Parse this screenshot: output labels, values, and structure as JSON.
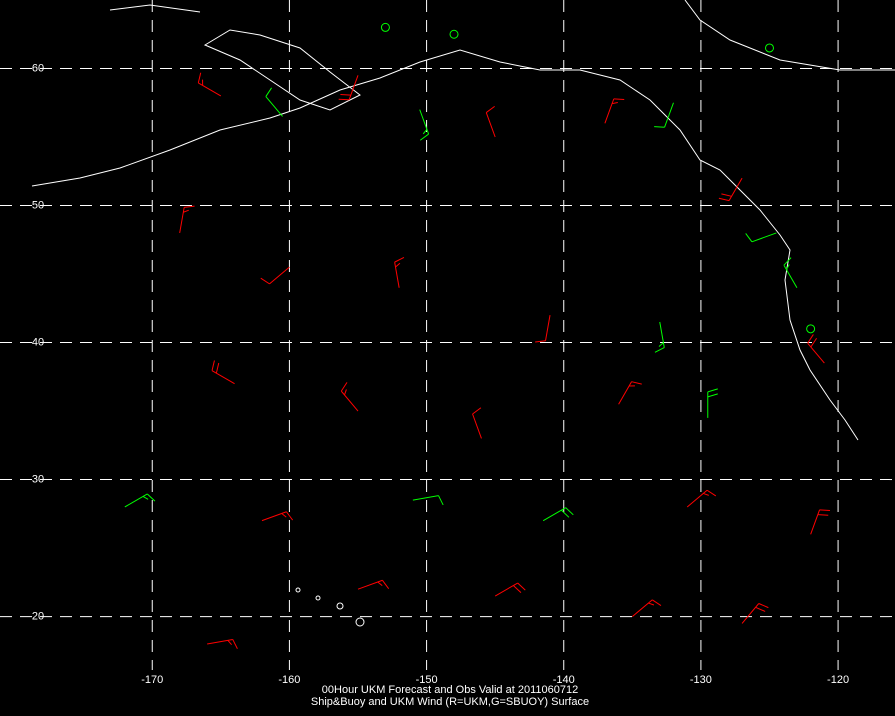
{
  "map": {
    "title": "00Hour UKM Forecast and Obs Valid at 2011060712",
    "subtitle": "Ship&Buoy and UKM Wind (R=UKM,G=SBUOY) Surface",
    "xlim": [
      -181.1,
      -115.85
    ],
    "ylim": [
      16.1,
      65.0
    ],
    "xticks": [
      -170,
      -160,
      -150,
      -140,
      -130,
      -120
    ],
    "yticks": [
      20,
      30,
      40,
      50,
      60
    ],
    "grid": true,
    "barbs": [
      {
        "lon": -165.0,
        "lat": 58.0,
        "dir": 300,
        "speed": 15,
        "color": "#ff0000"
      },
      {
        "lon": -160.5,
        "lat": 56.5,
        "dir": 320,
        "speed": 10,
        "color": "#00ff00"
      },
      {
        "lon": -155.0,
        "lat": 59.5,
        "dir": 200,
        "speed": 20,
        "color": "#ff0000"
      },
      {
        "lon": -150.5,
        "lat": 57.0,
        "dir": 160,
        "speed": 15,
        "color": "#00ff00"
      },
      {
        "lon": -148.0,
        "lat": 62.5,
        "dir": 0,
        "speed": 0,
        "color": "#00ff00"
      },
      {
        "lon": -153.0,
        "lat": 63.0,
        "dir": 0,
        "speed": 0,
        "color": "#00ff00"
      },
      {
        "lon": -125.0,
        "lat": 61.5,
        "dir": 0,
        "speed": 0,
        "color": "#00ff00"
      },
      {
        "lon": -145.0,
        "lat": 55.0,
        "dir": 340,
        "speed": 10,
        "color": "#ff0000"
      },
      {
        "lon": -137.0,
        "lat": 56.0,
        "dir": 20,
        "speed": 15,
        "color": "#ff0000"
      },
      {
        "lon": -132.0,
        "lat": 57.5,
        "dir": 200,
        "speed": 10,
        "color": "#00ff00"
      },
      {
        "lon": -127.0,
        "lat": 52.0,
        "dir": 210,
        "speed": 20,
        "color": "#ff0000"
      },
      {
        "lon": -124.5,
        "lat": 48.0,
        "dir": 250,
        "speed": 10,
        "color": "#00ff00"
      },
      {
        "lon": -123.0,
        "lat": 44.0,
        "dir": 330,
        "speed": 15,
        "color": "#00ff00"
      },
      {
        "lon": -121.0,
        "lat": 38.5,
        "dir": 320,
        "speed": 20,
        "color": "#ff0000"
      },
      {
        "lon": -122.0,
        "lat": 41.0,
        "dir": 0,
        "speed": 0,
        "color": "#00ff00"
      },
      {
        "lon": -168.0,
        "lat": 48.0,
        "dir": 10,
        "speed": 15,
        "color": "#ff0000"
      },
      {
        "lon": -160.0,
        "lat": 45.5,
        "dir": 230,
        "speed": 10,
        "color": "#ff0000"
      },
      {
        "lon": -152.0,
        "lat": 44.0,
        "dir": 350,
        "speed": 15,
        "color": "#ff0000"
      },
      {
        "lon": -141.0,
        "lat": 42.0,
        "dir": 190,
        "speed": 10,
        "color": "#ff0000"
      },
      {
        "lon": -133.0,
        "lat": 41.5,
        "dir": 170,
        "speed": 15,
        "color": "#00ff00"
      },
      {
        "lon": -164.0,
        "lat": 37.0,
        "dir": 300,
        "speed": 20,
        "color": "#ff0000"
      },
      {
        "lon": -155.0,
        "lat": 35.0,
        "dir": 320,
        "speed": 15,
        "color": "#ff0000"
      },
      {
        "lon": -146.0,
        "lat": 33.0,
        "dir": 340,
        "speed": 10,
        "color": "#ff0000"
      },
      {
        "lon": -136.0,
        "lat": 35.5,
        "dir": 30,
        "speed": 15,
        "color": "#ff0000"
      },
      {
        "lon": -129.5,
        "lat": 34.5,
        "dir": 0,
        "speed": 20,
        "color": "#00ff00"
      },
      {
        "lon": -172.0,
        "lat": 28.0,
        "dir": 60,
        "speed": 15,
        "color": "#00ff00"
      },
      {
        "lon": -162.0,
        "lat": 27.0,
        "dir": 70,
        "speed": 15,
        "color": "#ff0000"
      },
      {
        "lon": -151.0,
        "lat": 28.5,
        "dir": 80,
        "speed": 10,
        "color": "#00ff00"
      },
      {
        "lon": -141.5,
        "lat": 27.0,
        "dir": 60,
        "speed": 20,
        "color": "#00ff00"
      },
      {
        "lon": -131.0,
        "lat": 28.0,
        "dir": 50,
        "speed": 15,
        "color": "#ff0000"
      },
      {
        "lon": -122.0,
        "lat": 26.0,
        "dir": 20,
        "speed": 20,
        "color": "#ff0000"
      },
      {
        "lon": -155.0,
        "lat": 22.0,
        "dir": 70,
        "speed": 15,
        "color": "#ff0000"
      },
      {
        "lon": -145.0,
        "lat": 21.5,
        "dir": 60,
        "speed": 20,
        "color": "#ff0000"
      },
      {
        "lon": -135.0,
        "lat": 20.0,
        "dir": 50,
        "speed": 15,
        "color": "#ff0000"
      },
      {
        "lon": -127.0,
        "lat": 19.5,
        "dir": 40,
        "speed": 20,
        "color": "#ff0000"
      },
      {
        "lon": -166.0,
        "lat": 18.0,
        "dir": 80,
        "speed": 15,
        "color": "#ff0000"
      }
    ]
  }
}
